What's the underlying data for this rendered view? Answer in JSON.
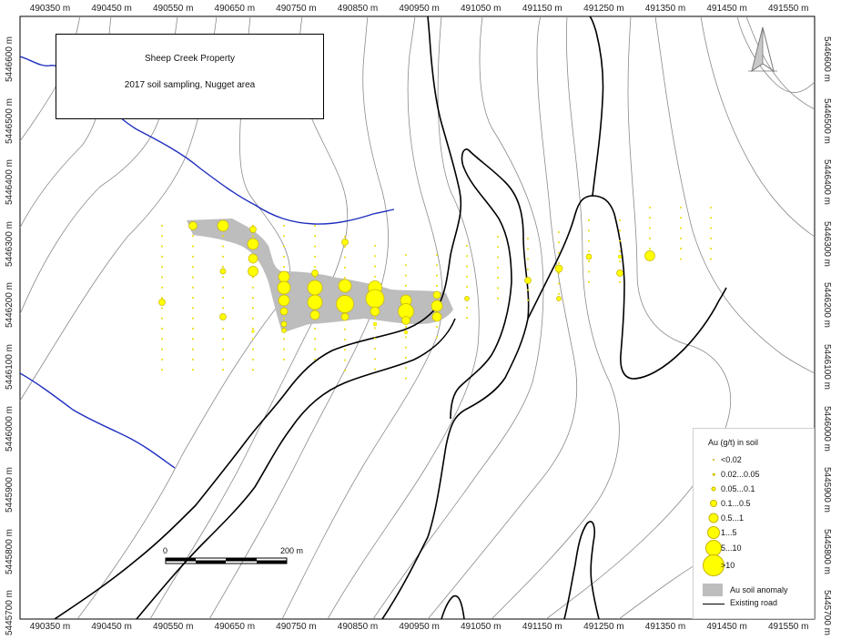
{
  "map": {
    "title": "Sheep Creek Property",
    "subtitle": "2017 soil sampling, Nugget area",
    "x_ticks": [
      "490350 m",
      "490450 m",
      "490550 m",
      "490650 m",
      "490750 m",
      "490850 m",
      "490950 m",
      "491050 m",
      "491150 m",
      "491250 m",
      "491350 m",
      "491450 m",
      "491550 m"
    ],
    "y_ticks": [
      "5446600 m",
      "5446500 m",
      "5446400 m",
      "5446300 m",
      "5446200 m",
      "5446100 m",
      "5446000 m",
      "5445900 m",
      "5445800 m",
      "5445700 m"
    ],
    "scale_bar": {
      "start_label": "0",
      "end_label": "200 m"
    },
    "colors": {
      "sample": "#ffff00",
      "anomaly": "#bdbdbd",
      "stream": "#1f2fbf",
      "road": "#000000",
      "contour": "#8a8a8a"
    },
    "north_arrow_icon": "north-arrow-icon"
  },
  "legend": {
    "title": "Au  (g/t) in soil",
    "classes": [
      {
        "label": "<0.02"
      },
      {
        "label": "0.02...0.05"
      },
      {
        "label": "0.05...0.1"
      },
      {
        "label": "0.1...0.5"
      },
      {
        "label": "0.5...1"
      },
      {
        "label": "1...5"
      },
      {
        "label": "5...10"
      },
      {
        "label": ">10"
      }
    ],
    "anomaly_label": "Au soil anomaly",
    "road_label": "Existing road"
  }
}
